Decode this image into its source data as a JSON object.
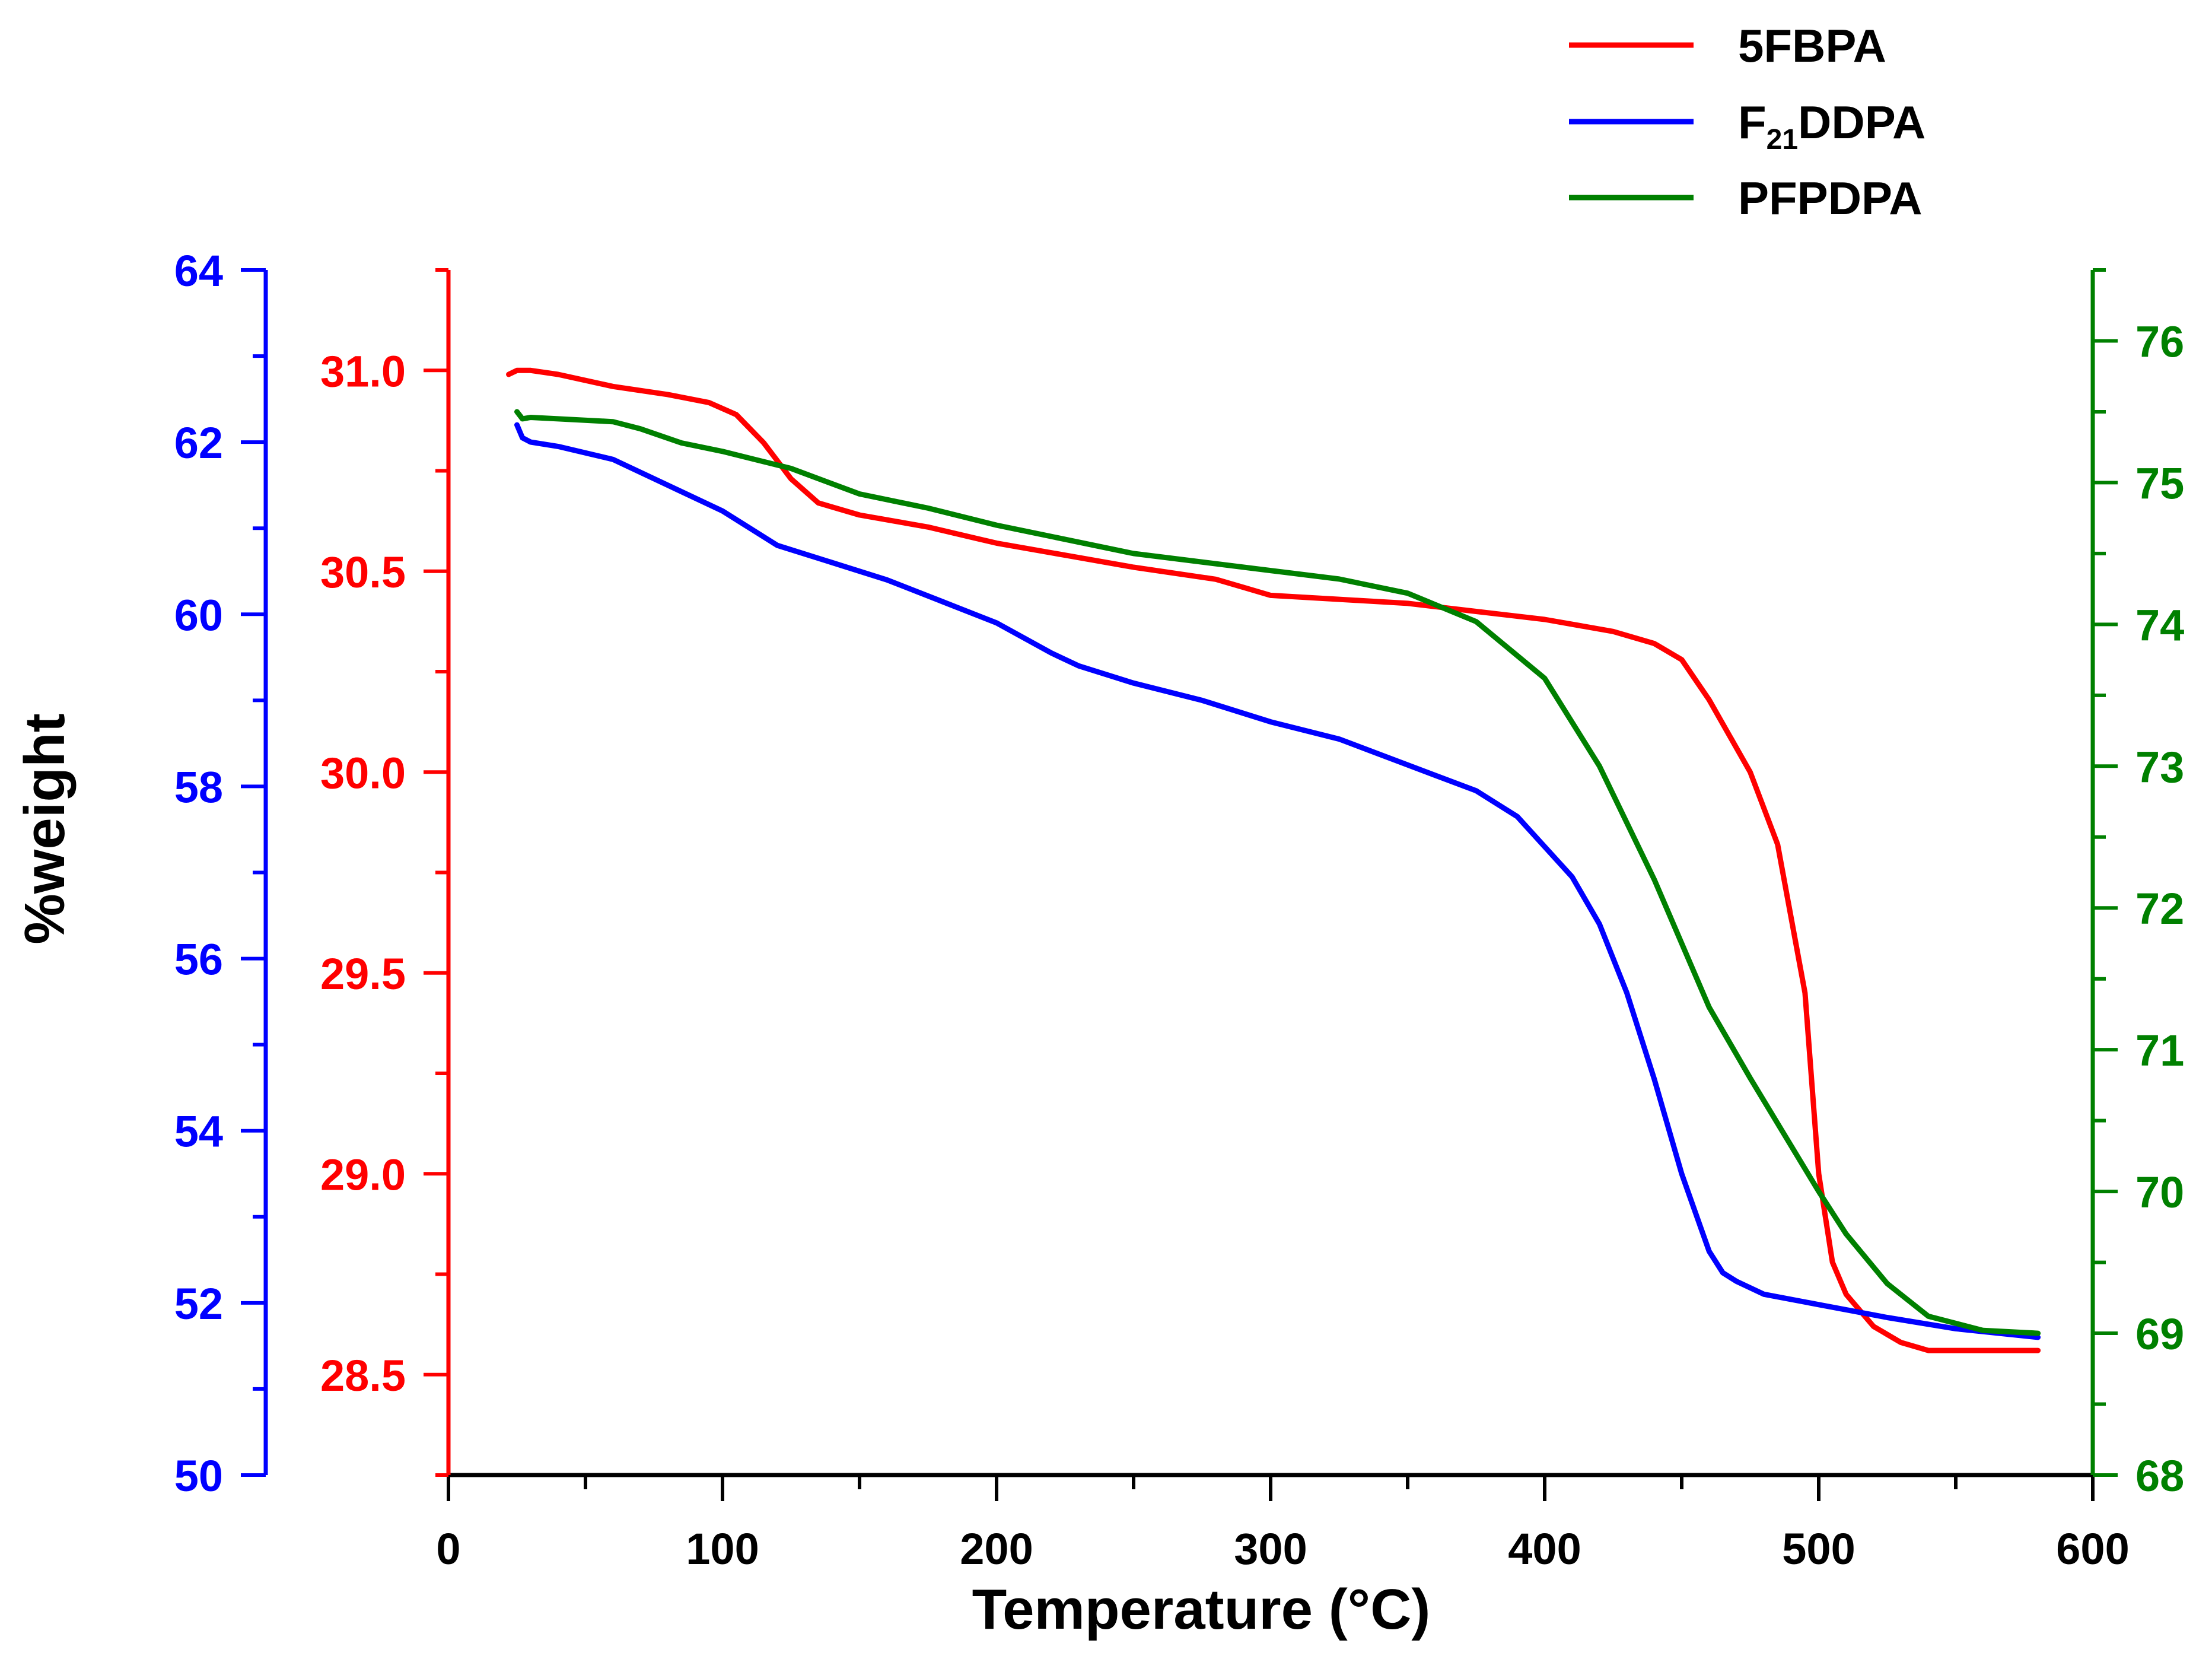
{
  "chart_data": {
    "type": "line",
    "title": "",
    "xlabel": "Temperature (°C)",
    "ylabel": "%weight",
    "xlim": [
      0,
      600
    ],
    "x_ticks": [
      0,
      100,
      200,
      300,
      400,
      500,
      600
    ],
    "axes": {
      "left_blue": {
        "color": "#0000ff",
        "ylim": [
          50,
          64
        ],
        "ticks": [
          50,
          52,
          54,
          56,
          58,
          60,
          62,
          64
        ],
        "tick_labels": [
          "50",
          "52",
          "54",
          "56",
          "58",
          "60",
          "62",
          "64"
        ]
      },
      "left_red": {
        "color": "#ff0000",
        "ylim": [
          28.25,
          31.25
        ],
        "ticks": [
          28.5,
          29.0,
          29.5,
          30.0,
          30.5,
          31.0
        ],
        "tick_labels": [
          "28.5",
          "29.0",
          "29.5",
          "30.0",
          "30.5",
          "31.0"
        ]
      },
      "right_green": {
        "color": "#008000",
        "ylim": [
          68,
          76.5
        ],
        "ticks": [
          68,
          69,
          70,
          71,
          72,
          73,
          74,
          75,
          76
        ],
        "tick_labels": [
          "68",
          "69",
          "70",
          "71",
          "72",
          "73",
          "74",
          "75",
          "76"
        ]
      }
    },
    "legend": {
      "placement": "top-right",
      "entries": [
        {
          "name": "5FBPA",
          "color": "#ff0000"
        },
        {
          "name_main": "F",
          "name_sub": "21",
          "name_rest": "DDPA",
          "color": "#0000ff"
        },
        {
          "name": "PFPDPA",
          "color": "#008000"
        }
      ]
    },
    "series": [
      {
        "name": "5FBPA",
        "axis": "left_red",
        "color": "#ff0000",
        "x": [
          22,
          25,
          30,
          40,
          60,
          80,
          95,
          105,
          115,
          125,
          135,
          150,
          175,
          200,
          225,
          250,
          280,
          290,
          300,
          325,
          350,
          375,
          400,
          425,
          440,
          450,
          460,
          475,
          485,
          495,
          500,
          505,
          510,
          520,
          530,
          540,
          560,
          580
        ],
        "y": [
          30.99,
          31.0,
          31.0,
          30.99,
          30.96,
          30.94,
          30.92,
          30.89,
          30.82,
          30.73,
          30.67,
          30.64,
          30.61,
          30.57,
          30.54,
          30.51,
          30.48,
          30.46,
          30.44,
          30.43,
          30.42,
          30.4,
          30.38,
          30.35,
          30.32,
          30.28,
          30.18,
          30.0,
          29.82,
          29.45,
          29.0,
          28.78,
          28.7,
          28.62,
          28.58,
          28.56,
          28.56,
          28.56
        ]
      },
      {
        "name": "F21DDPA",
        "axis": "left_blue",
        "color": "#0000ff",
        "x": [
          25,
          27,
          30,
          40,
          60,
          80,
          100,
          120,
          140,
          160,
          180,
          200,
          220,
          230,
          250,
          275,
          300,
          325,
          350,
          375,
          390,
          400,
          410,
          420,
          430,
          440,
          450,
          460,
          465,
          470,
          480,
          500,
          525,
          550,
          580
        ],
        "y": [
          62.2,
          62.05,
          62.0,
          61.95,
          61.8,
          61.5,
          61.2,
          60.8,
          60.6,
          60.4,
          60.15,
          59.9,
          59.55,
          59.4,
          59.2,
          59.0,
          58.75,
          58.55,
          58.25,
          57.95,
          57.65,
          57.3,
          56.95,
          56.4,
          55.6,
          54.6,
          53.5,
          52.6,
          52.35,
          52.25,
          52.1,
          51.98,
          51.83,
          51.7,
          51.6
        ]
      },
      {
        "name": "PFPDPA",
        "axis": "right_green",
        "color": "#008000",
        "x": [
          25,
          27,
          30,
          40,
          60,
          70,
          85,
          100,
          125,
          150,
          175,
          200,
          250,
          300,
          325,
          350,
          375,
          400,
          420,
          440,
          460,
          475,
          500,
          510,
          525,
          540,
          560,
          580
        ],
        "y": [
          75.5,
          75.45,
          75.46,
          75.45,
          75.43,
          75.38,
          75.28,
          75.22,
          75.1,
          74.92,
          74.82,
          74.7,
          74.5,
          74.38,
          74.32,
          74.22,
          74.02,
          73.62,
          73.0,
          72.2,
          71.3,
          70.8,
          70.0,
          69.7,
          69.35,
          69.12,
          69.02,
          69.0
        ]
      }
    ]
  }
}
